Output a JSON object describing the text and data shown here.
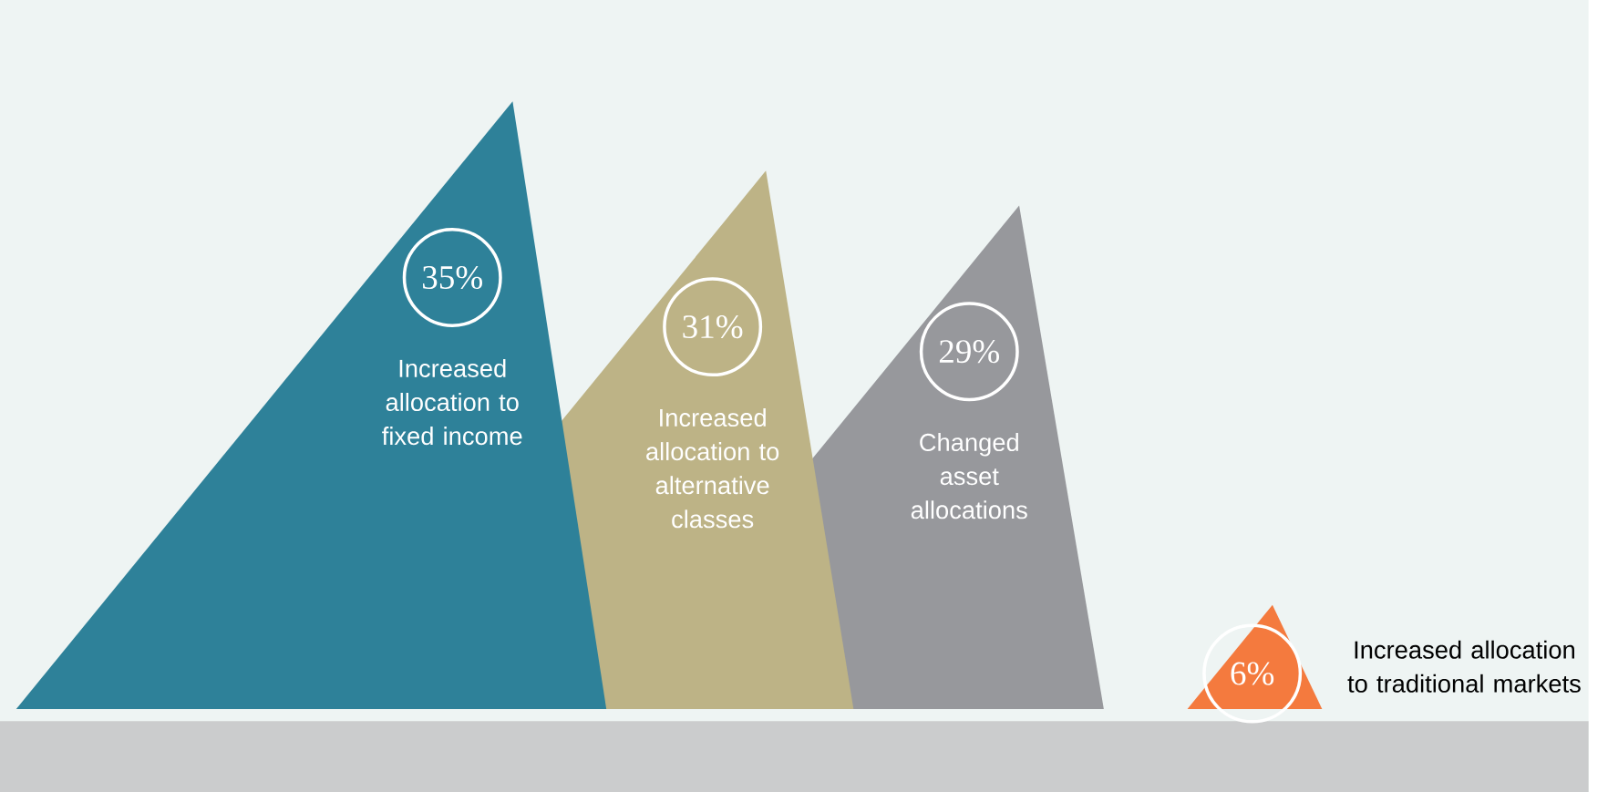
{
  "chart_data": {
    "type": "other",
    "categories": [
      "Increased allocation to fixed income",
      "Increased allocation to alternative classes",
      "Changed asset allocations",
      "Increased allocation to traditional markets"
    ],
    "values": [
      35,
      31,
      29,
      6
    ],
    "value_labels": [
      "35%",
      "31%",
      "29%",
      "6%"
    ],
    "colors": [
      "#2e8199",
      "#bdb386",
      "#97989c",
      "#f47a3e"
    ]
  }
}
